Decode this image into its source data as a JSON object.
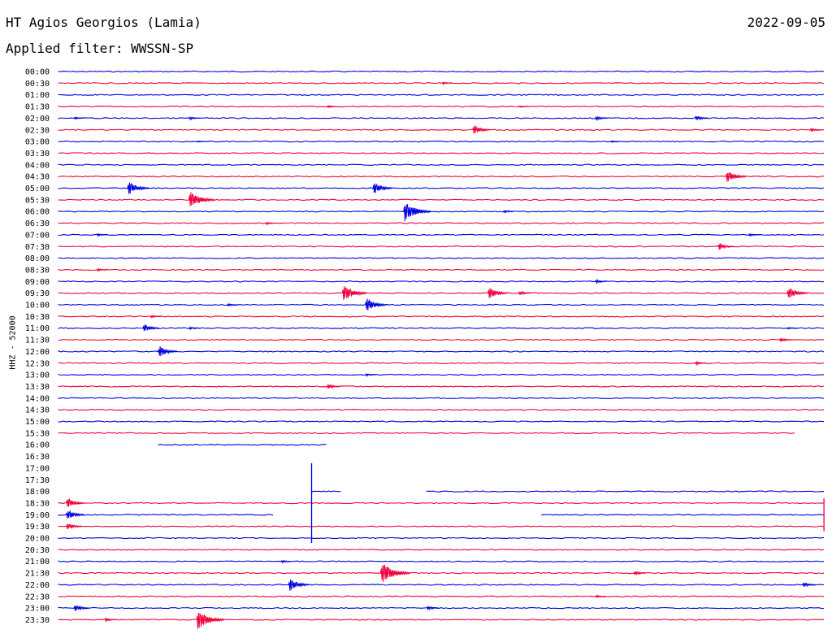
{
  "header": {
    "title": "HT Agios Georgios (Lamia)",
    "date": "2022-09-05",
    "filter": "Applied filter: WWSSN-SP",
    "ylabel": "HHZ - 52000"
  },
  "colors": {
    "blue": "#0000e0",
    "red": "#f0003c"
  },
  "chart_data": {
    "type": "line",
    "title": "HT Agios Georgios (Lamia)",
    "subtitle": "Applied filter: WWSSN-SP",
    "ylabel": "HHZ - 52000",
    "xlabel": "",
    "grid": false,
    "lines": [
      {
        "label": "00:00",
        "color": "blue",
        "segments": [
          [
            0,
            1
          ]
        ],
        "events": []
      },
      {
        "label": "00:30",
        "color": "red",
        "segments": [
          [
            0,
            1
          ]
        ],
        "events": [
          [
            0.5,
            0.3
          ]
        ]
      },
      {
        "label": "01:00",
        "color": "blue",
        "segments": [
          [
            0,
            1
          ]
        ],
        "events": []
      },
      {
        "label": "01:30",
        "color": "red",
        "segments": [
          [
            0,
            1
          ]
        ],
        "events": [
          [
            0.35,
            0.3
          ],
          [
            0.6,
            0.2
          ]
        ]
      },
      {
        "label": "02:00",
        "color": "blue",
        "segments": [
          [
            0,
            1
          ]
        ],
        "events": [
          [
            0.02,
            0.3
          ],
          [
            0.17,
            0.35
          ],
          [
            0.7,
            0.5
          ],
          [
            0.83,
            0.6
          ]
        ]
      },
      {
        "label": "02:30",
        "color": "red",
        "segments": [
          [
            0,
            1
          ]
        ],
        "events": [
          [
            0.54,
            1.0
          ],
          [
            0.98,
            0.4
          ]
        ]
      },
      {
        "label": "03:00",
        "color": "blue",
        "segments": [
          [
            0,
            1
          ]
        ],
        "events": [
          [
            0.18,
            0.2
          ],
          [
            0.72,
            0.2
          ]
        ]
      },
      {
        "label": "03:30",
        "color": "red",
        "segments": [
          [
            0,
            1
          ]
        ],
        "events": []
      },
      {
        "label": "04:00",
        "color": "blue",
        "segments": [
          [
            0,
            1
          ]
        ],
        "events": []
      },
      {
        "label": "04:30",
        "color": "red",
        "segments": [
          [
            0,
            1
          ]
        ],
        "events": [
          [
            0.87,
            1.3
          ]
        ]
      },
      {
        "label": "05:00",
        "color": "blue",
        "segments": [
          [
            0,
            1
          ]
        ],
        "events": [
          [
            0.09,
            1.4
          ],
          [
            0.41,
            1.2
          ]
        ]
      },
      {
        "label": "05:30",
        "color": "red",
        "segments": [
          [
            0,
            1
          ]
        ],
        "events": [
          [
            0.17,
            1.8
          ]
        ]
      },
      {
        "label": "06:00",
        "color": "blue",
        "segments": [
          [
            0,
            1
          ]
        ],
        "events": [
          [
            0.45,
            2.0
          ],
          [
            0.58,
            0.3
          ]
        ]
      },
      {
        "label": "06:30",
        "color": "red",
        "segments": [
          [
            0,
            1
          ]
        ],
        "events": [
          [
            0.27,
            0.3
          ]
        ]
      },
      {
        "label": "07:00",
        "color": "blue",
        "segments": [
          [
            0,
            1
          ]
        ],
        "events": [
          [
            0.05,
            0.3
          ],
          [
            0.9,
            0.3
          ]
        ]
      },
      {
        "label": "07:30",
        "color": "red",
        "segments": [
          [
            0,
            1
          ]
        ],
        "events": [
          [
            0.86,
            0.8
          ]
        ]
      },
      {
        "label": "08:00",
        "color": "blue",
        "segments": [
          [
            0,
            1
          ]
        ],
        "events": []
      },
      {
        "label": "08:30",
        "color": "red",
        "segments": [
          [
            0,
            1
          ]
        ],
        "events": [
          [
            0.05,
            0.3
          ]
        ]
      },
      {
        "label": "09:00",
        "color": "blue",
        "segments": [
          [
            0,
            1
          ]
        ],
        "events": [
          [
            0.7,
            0.4
          ]
        ]
      },
      {
        "label": "09:30",
        "color": "red",
        "segments": [
          [
            0,
            1
          ]
        ],
        "events": [
          [
            0.37,
            1.7
          ],
          [
            0.56,
            1.2
          ],
          [
            0.6,
            0.5
          ],
          [
            0.95,
            1.3
          ]
        ]
      },
      {
        "label": "10:00",
        "color": "blue",
        "segments": [
          [
            0,
            1
          ]
        ],
        "events": [
          [
            0.22,
            0.3
          ],
          [
            0.4,
            1.4
          ]
        ]
      },
      {
        "label": "10:30",
        "color": "red",
        "segments": [
          [
            0,
            1
          ]
        ],
        "events": [
          [
            0.12,
            0.3
          ]
        ]
      },
      {
        "label": "11:00",
        "color": "blue",
        "segments": [
          [
            0,
            1
          ]
        ],
        "events": [
          [
            0.11,
            0.9
          ],
          [
            0.17,
            0.3
          ],
          [
            0.95,
            0.2
          ]
        ]
      },
      {
        "label": "11:30",
        "color": "red",
        "segments": [
          [
            0,
            1
          ]
        ],
        "events": [
          [
            0.94,
            0.5
          ]
        ]
      },
      {
        "label": "12:00",
        "color": "blue",
        "segments": [
          [
            0,
            1
          ]
        ],
        "events": [
          [
            0.13,
            1.2
          ]
        ]
      },
      {
        "label": "12:30",
        "color": "red",
        "segments": [
          [
            0,
            1
          ]
        ],
        "events": [
          [
            0.83,
            0.4
          ]
        ]
      },
      {
        "label": "13:00",
        "color": "blue",
        "segments": [
          [
            0,
            1
          ]
        ],
        "events": [
          [
            0.4,
            0.3
          ]
        ]
      },
      {
        "label": "13:30",
        "color": "red",
        "segments": [
          [
            0,
            1
          ]
        ],
        "events": [
          [
            0.35,
            0.6
          ]
        ]
      },
      {
        "label": "14:00",
        "color": "blue",
        "segments": [
          [
            0,
            1
          ]
        ],
        "events": []
      },
      {
        "label": "14:30",
        "color": "red",
        "segments": [
          [
            0,
            1
          ]
        ],
        "events": []
      },
      {
        "label": "15:00",
        "color": "blue",
        "segments": [
          [
            0,
            1
          ]
        ],
        "events": []
      },
      {
        "label": "15:30",
        "color": "red",
        "segments": [
          [
            0,
            0.96
          ]
        ],
        "events": []
      },
      {
        "label": "16:00",
        "color": "blue",
        "segments": [
          [
            0.13,
            0.35
          ]
        ],
        "events": []
      },
      {
        "label": "16:30",
        "color": "red",
        "segments": [],
        "events": []
      },
      {
        "label": "17:00",
        "color": "blue",
        "segments": [],
        "events": []
      },
      {
        "label": "17:30",
        "color": "red",
        "segments": [],
        "events": []
      },
      {
        "label": "18:00",
        "color": "blue",
        "segments": [
          [
            0.33,
            0.37
          ],
          [
            0.48,
            1
          ]
        ],
        "events": []
      },
      {
        "label": "18:30",
        "color": "red",
        "segments": [
          [
            0,
            1
          ]
        ],
        "events": [
          [
            0.01,
            1.1
          ]
        ]
      },
      {
        "label": "19:00",
        "color": "blue",
        "segments": [
          [
            0,
            0.28
          ],
          [
            0.63,
            1
          ]
        ],
        "events": [
          [
            0.01,
            1.1
          ]
        ]
      },
      {
        "label": "19:30",
        "color": "red",
        "segments": [
          [
            0,
            1
          ]
        ],
        "events": [
          [
            0.01,
            0.8
          ]
        ]
      },
      {
        "label": "20:00",
        "color": "blue",
        "segments": [
          [
            0,
            1
          ]
        ],
        "events": []
      },
      {
        "label": "20:30",
        "color": "red",
        "segments": [
          [
            0,
            1
          ]
        ],
        "events": []
      },
      {
        "label": "21:00",
        "color": "blue",
        "segments": [
          [
            0,
            1
          ]
        ],
        "events": [
          [
            0.29,
            0.3
          ]
        ]
      },
      {
        "label": "21:30",
        "color": "red",
        "segments": [
          [
            0,
            1
          ]
        ],
        "events": [
          [
            0.42,
            2.2
          ],
          [
            0.75,
            0.5
          ]
        ]
      },
      {
        "label": "22:00",
        "color": "blue",
        "segments": [
          [
            0,
            1
          ]
        ],
        "events": [
          [
            0.3,
            1.3
          ],
          [
            0.97,
            0.6
          ]
        ]
      },
      {
        "label": "22:30",
        "color": "red",
        "segments": [
          [
            0,
            1
          ]
        ],
        "events": [
          [
            0.7,
            0.3
          ]
        ]
      },
      {
        "label": "23:00",
        "color": "blue",
        "segments": [
          [
            0,
            1
          ]
        ],
        "events": [
          [
            0.02,
            0.8
          ],
          [
            0.48,
            0.5
          ]
        ]
      },
      {
        "label": "23:30",
        "color": "red",
        "segments": [
          [
            0,
            1
          ]
        ],
        "events": [
          [
            0.06,
            0.4
          ],
          [
            0.18,
            2.0
          ]
        ]
      }
    ],
    "spikes": [
      {
        "line_from": "17:00",
        "line_to": "20:00",
        "x": 0.33,
        "color": "blue"
      },
      {
        "line_from": "18:30",
        "line_to": "19:30",
        "x": 0.998,
        "color": "red"
      }
    ]
  }
}
